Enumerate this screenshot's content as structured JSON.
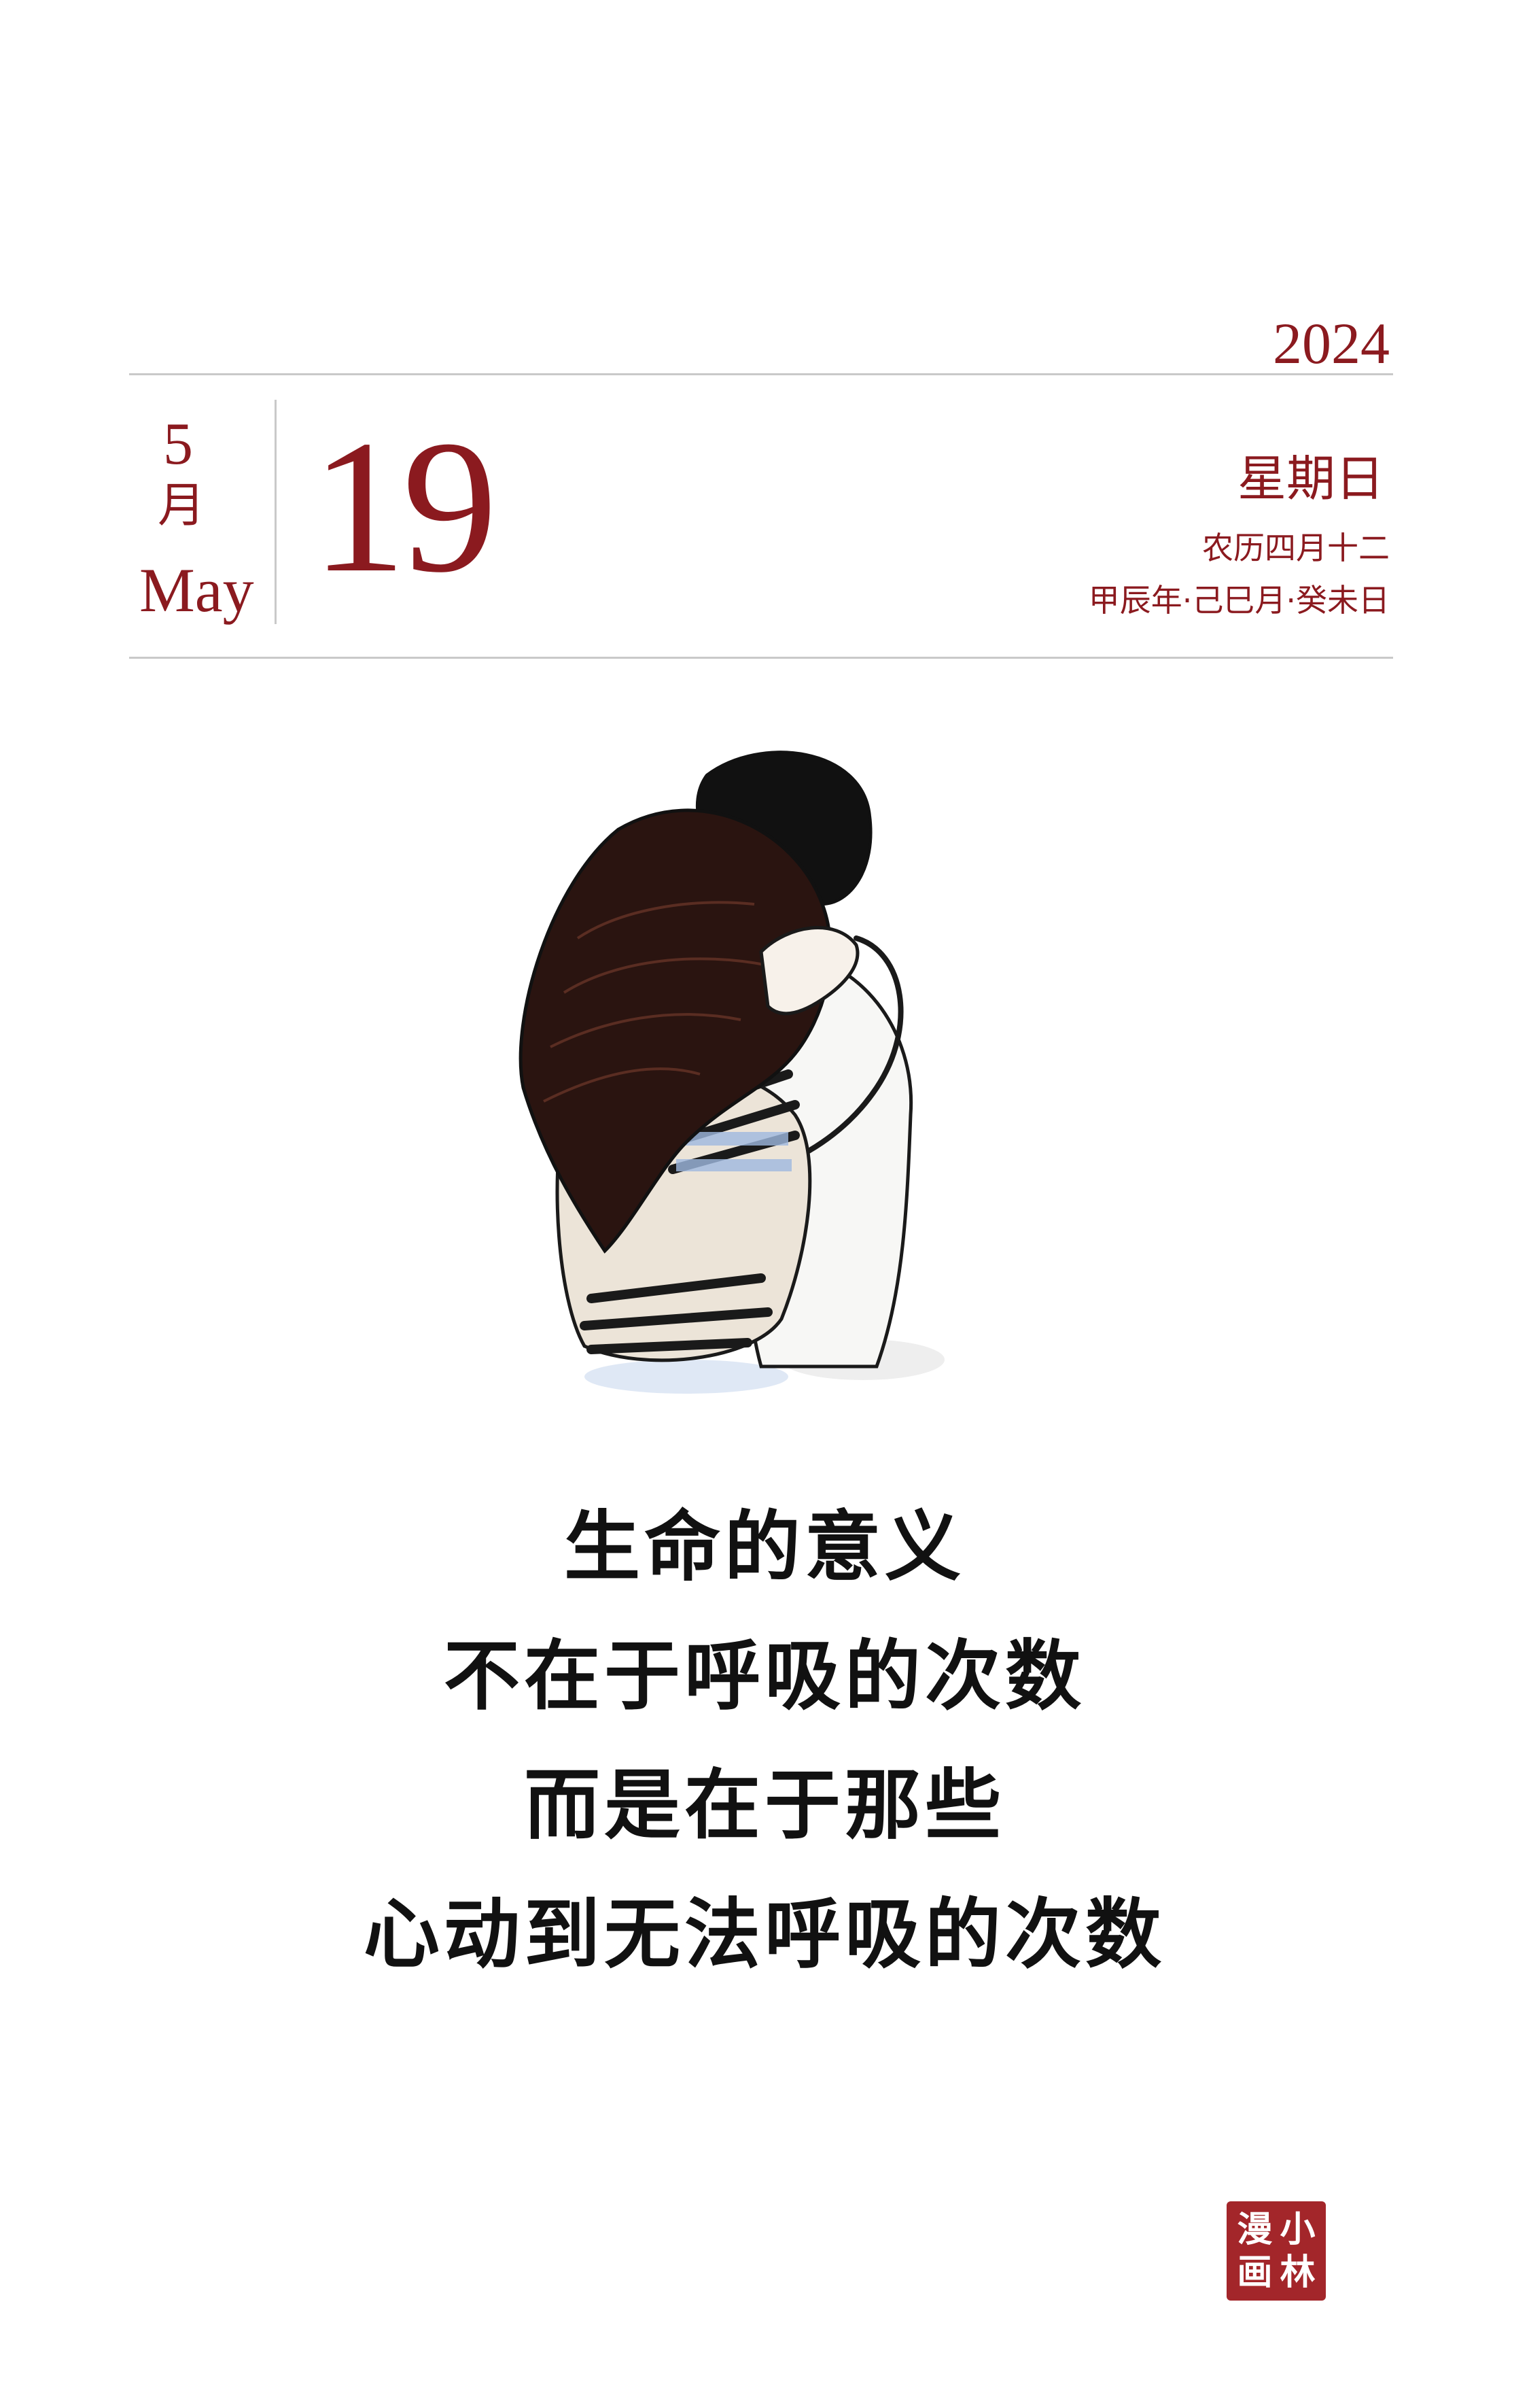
{
  "calendar": {
    "year": "2024",
    "month_number": "5",
    "month_cn": "月",
    "month_en": "May",
    "day": "19",
    "weekday": "星期日",
    "lunar_date": "农历四月十二",
    "ganzhi": "甲辰年·己巳月·癸未日"
  },
  "poem": {
    "lines": [
      "生命的意义",
      "不在于呼吸的次数",
      "而是在于那些",
      "心动到无法呼吸的次数"
    ]
  },
  "seal": {
    "chars": [
      "小",
      "林",
      "漫",
      "画"
    ]
  },
  "colors": {
    "accent": "#8b1a1f",
    "seal": "#a3262a",
    "text": "#111111"
  }
}
